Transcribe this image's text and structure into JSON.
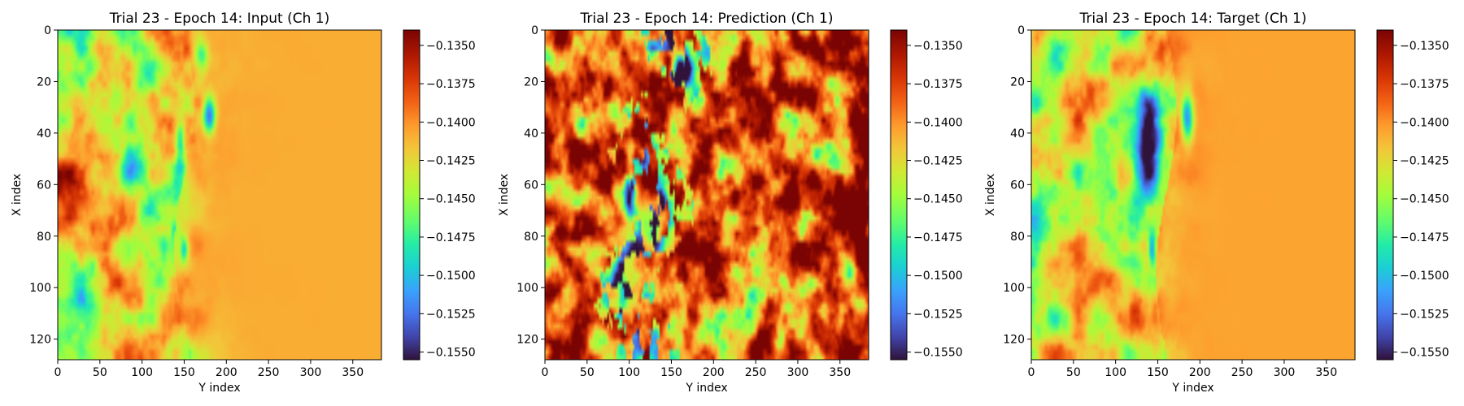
{
  "chart_data": [
    {
      "type": "heatmap",
      "title": "Trial 23 - Epoch 14: Input (Ch 1)",
      "xlabel": "Y index",
      "ylabel": "X index",
      "xlim": [
        0,
        384
      ],
      "ylim": [
        128,
        0
      ],
      "xticks": [
        "0",
        "50",
        "100",
        "150",
        "200",
        "250",
        "300",
        "350"
      ],
      "yticks": [
        "0",
        "20",
        "40",
        "60",
        "80",
        "100",
        "120"
      ],
      "colorbar": {
        "colormap": "turbo",
        "range": [
          -0.1555,
          -0.134
        ],
        "ticks": [
          "−0.1350",
          "−0.1375",
          "−0.1400",
          "−0.1425",
          "−0.1450",
          "−0.1475",
          "−0.1500",
          "−0.1525",
          "−0.1550"
        ]
      },
      "description_of_field": "left region (Y<160) mottled orange/red with green patches; front near Y≈150 with blue spots near X≈35 and X≈85; right region uniform light orange (~-0.1405)"
    },
    {
      "type": "heatmap",
      "title": "Trial 23 - Epoch 14: Prediction (Ch 1)",
      "xlabel": "Y index",
      "ylabel": "X index",
      "xlim": [
        0,
        384
      ],
      "ylim": [
        128,
        0
      ],
      "xticks": [
        "0",
        "50",
        "100",
        "150",
        "200",
        "250",
        "300",
        "350"
      ],
      "yticks": [
        "0",
        "20",
        "40",
        "60",
        "80",
        "100",
        "120"
      ],
      "colorbar": {
        "colormap": "turbo",
        "range": [
          -0.1555,
          -0.134
        ],
        "ticks": [
          "−0.1350",
          "−0.1375",
          "−0.1400",
          "−0.1425",
          "−0.1450",
          "−0.1475",
          "−0.1500",
          "−0.1525",
          "−0.1550"
        ]
      },
      "description_of_field": "entire field streaky and saturated red/orange with yellow-green blobs; dark blue/purple diagonal streaks between Y≈100 and Y≈175"
    },
    {
      "type": "heatmap",
      "title": "Trial 23 - Epoch 14: Target (Ch 1)",
      "xlabel": "Y index",
      "ylabel": "X index",
      "xlim": [
        0,
        384
      ],
      "ylim": [
        128,
        0
      ],
      "xticks": [
        "0",
        "50",
        "100",
        "150",
        "200",
        "250",
        "300",
        "350"
      ],
      "yticks": [
        "0",
        "20",
        "40",
        "60",
        "80",
        "100",
        "120"
      ],
      "colorbar": {
        "colormap": "turbo",
        "range": [
          -0.1555,
          -0.134
        ],
        "ticks": [
          "−0.1350",
          "−0.1375",
          "−0.1400",
          "−0.1425",
          "−0.1450",
          "−0.1475",
          "−0.1500",
          "−0.1525",
          "−0.1550"
        ]
      },
      "description_of_field": "left region mottled orange/red with green; large green/cyan/blue blob centered near Y≈140,X≈45 with dark spot near Y≈185,X≈33; right region uniform light orange"
    }
  ],
  "colors": {
    "turbo_dark": "#30123b",
    "turbo_blue": "#4686fb",
    "turbo_cyan": "#1ae4b6",
    "turbo_green": "#a2fc3c",
    "turbo_yellow": "#fabb38",
    "turbo_orange": "#f6701f",
    "turbo_red": "#ca2a04",
    "turbo_darkred": "#7a0403"
  }
}
